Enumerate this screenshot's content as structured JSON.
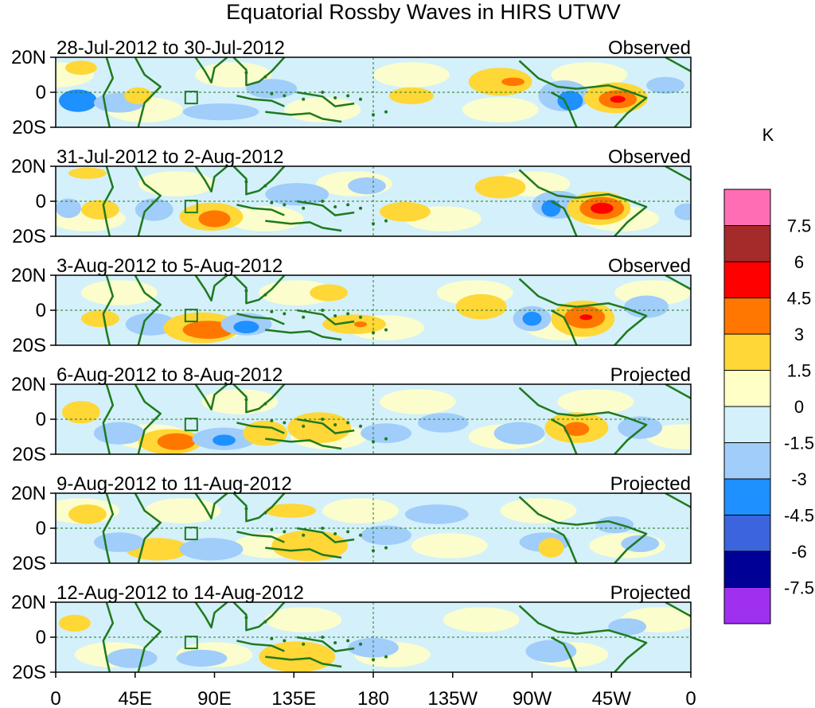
{
  "title": "Equatorial Rossby Waves in HIRS UTWV",
  "lat_labels": [
    "20N",
    "0",
    "20S"
  ],
  "lon_labels": [
    "0",
    "45E",
    "90E",
    "135E",
    "180",
    "135W",
    "90W",
    "45W",
    "0"
  ],
  "panels": [
    {
      "dates": "28-Jul-2012 to 30-Jul-2012",
      "status": "Observed"
    },
    {
      "dates": "31-Jul-2012 to 2-Aug-2012",
      "status": "Observed"
    },
    {
      "dates": "3-Aug-2012 to 5-Aug-2012",
      "status": "Observed"
    },
    {
      "dates": "6-Aug-2012 to 8-Aug-2012",
      "status": "Projected"
    },
    {
      "dates": "9-Aug-2012 to 11-Aug-2012",
      "status": "Projected"
    },
    {
      "dates": "12-Aug-2012 to 14-Aug-2012",
      "status": "Projected"
    }
  ],
  "colorbar": {
    "unit": "K",
    "levels": [
      "7.5",
      "6",
      "4.5",
      "3",
      "1.5",
      "0",
      "-1.5",
      "-3",
      "-4.5",
      "-6",
      "-7.5"
    ],
    "colors": [
      "#ff6eb4",
      "#a52a2a",
      "#ff0000",
      "#ff7700",
      "#ffd736",
      "#ffffc6",
      "#d4f0fa",
      "#a0cdfa",
      "#1e90ff",
      "#3c64dc",
      "#000096",
      "#a030f0"
    ]
  },
  "map_colors": {
    "coast": "#1e7a1e",
    "frame": "#000000"
  }
}
